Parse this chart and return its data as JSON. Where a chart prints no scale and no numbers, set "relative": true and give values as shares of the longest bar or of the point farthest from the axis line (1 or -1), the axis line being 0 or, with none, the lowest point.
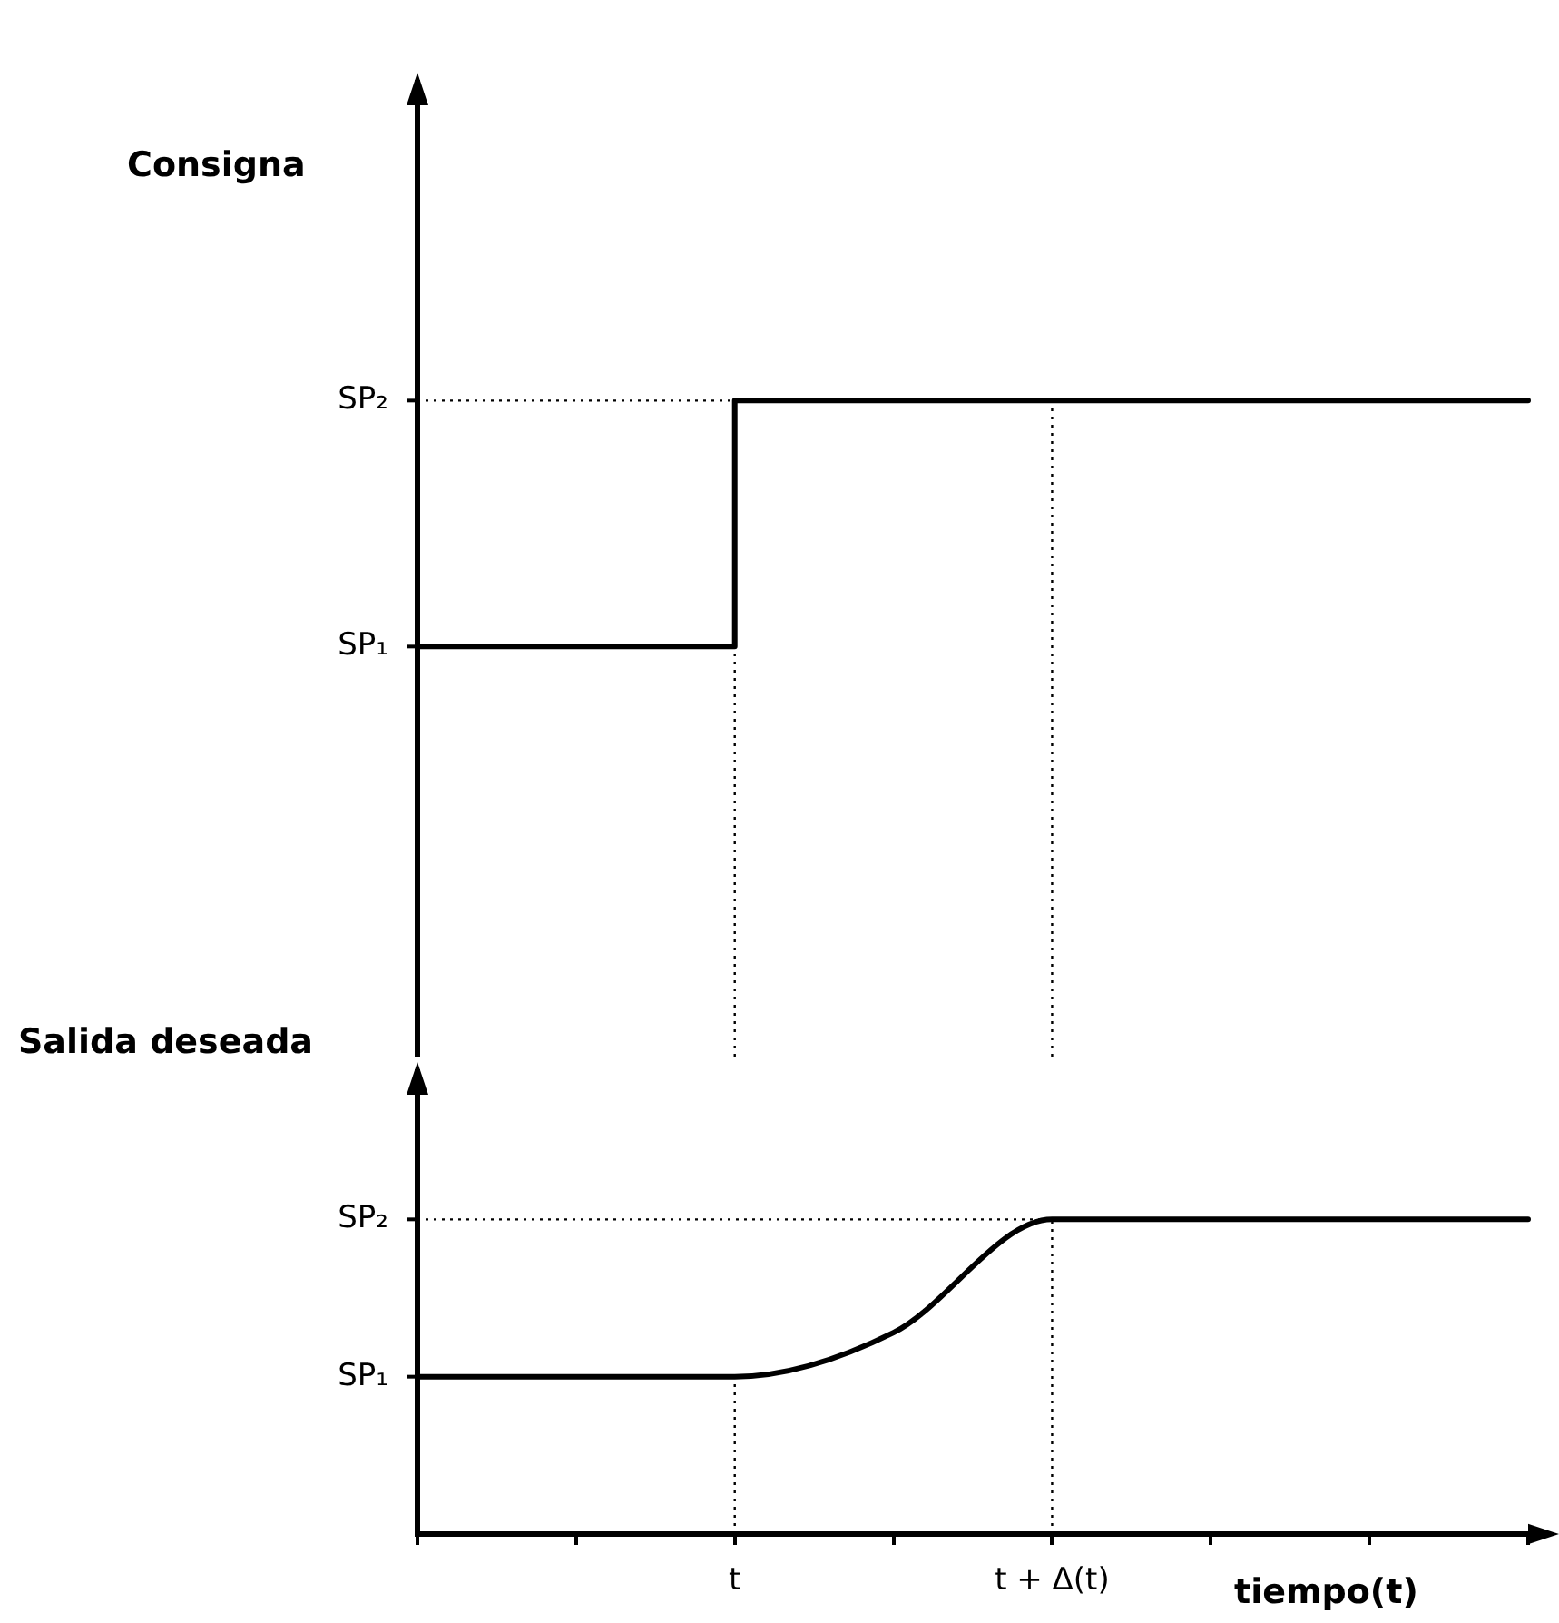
{
  "chart_data": [
    {
      "type": "step",
      "title": "Consigna",
      "relative": true,
      "tick_labels": false,
      "grid": false,
      "categories": [
        null,
        null,
        "t",
        null,
        "t + Δ(t)",
        null,
        null,
        null
      ],
      "series": [
        {
          "color": "#000000",
          "values": [
            0.625,
            0.625,
            1,
            1,
            1,
            1,
            1,
            1
          ]
        }
      ],
      "annotations": [
        "SP₁",
        "SP₂"
      ],
      "ref_lines": [
        {
          "axis": "y",
          "value": 1,
          "line_style": "dotted",
          "color": "#000000"
        },
        {
          "axis": "x",
          "value": "t",
          "line_style": "dotted",
          "color": "#000000"
        },
        {
          "axis": "x",
          "value": "t + Δ(t)",
          "line_style": "dotted",
          "color": "#000000"
        }
      ]
    },
    {
      "type": "line",
      "title": "Salida deseada",
      "xlabel": "tiempo(t)",
      "relative": true,
      "grid": false,
      "categories": [
        null,
        null,
        "t",
        null,
        "t + Δ(t)",
        null,
        null,
        null
      ],
      "series": [
        {
          "color": "#000000",
          "values": [
            0.5,
            0.5,
            0.5,
            0.64,
            1,
            1,
            1,
            1
          ]
        }
      ],
      "annotations": [
        "SP₁",
        "SP₂"
      ],
      "ref_lines": [
        {
          "axis": "y",
          "value": 1,
          "line_style": "dotted",
          "color": "#000000"
        },
        {
          "axis": "x",
          "value": "t",
          "line_style": "dotted",
          "color": "#000000"
        },
        {
          "axis": "x",
          "value": "t + Δ(t)",
          "line_style": "dotted",
          "color": "#000000"
        }
      ]
    }
  ]
}
